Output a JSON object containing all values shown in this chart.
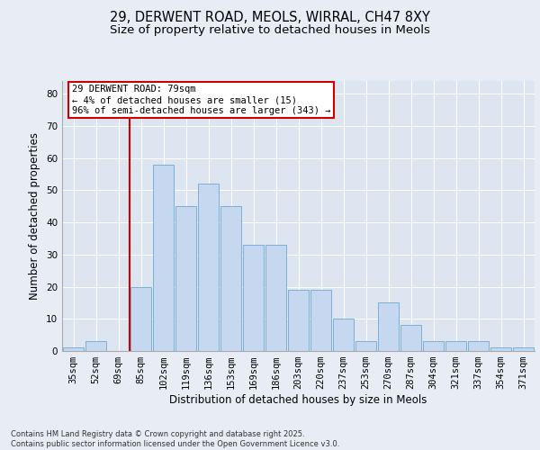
{
  "title1": "29, DERWENT ROAD, MEOLS, WIRRAL, CH47 8XY",
  "title2": "Size of property relative to detached houses in Meols",
  "xlabel": "Distribution of detached houses by size in Meols",
  "ylabel": "Number of detached properties",
  "categories": [
    "35sqm",
    "52sqm",
    "69sqm",
    "85sqm",
    "102sqm",
    "119sqm",
    "136sqm",
    "153sqm",
    "169sqm",
    "186sqm",
    "203sqm",
    "220sqm",
    "237sqm",
    "253sqm",
    "270sqm",
    "287sqm",
    "304sqm",
    "321sqm",
    "337sqm",
    "354sqm",
    "371sqm"
  ],
  "values": [
    1,
    3,
    0,
    20,
    58,
    45,
    52,
    45,
    33,
    33,
    19,
    19,
    10,
    3,
    15,
    8,
    3,
    3,
    3,
    1,
    1
  ],
  "bar_color": "#c5d8f0",
  "bar_edge_color": "#7bafd4",
  "red_line_index": 3,
  "annotation_text": "29 DERWENT ROAD: 79sqm\n← 4% of detached houses are smaller (15)\n96% of semi-detached houses are larger (343) →",
  "annotation_box_color": "#ffffff",
  "annotation_box_edge": "#cc0000",
  "red_line_color": "#cc0000",
  "ylim": [
    0,
    84
  ],
  "yticks": [
    0,
    10,
    20,
    30,
    40,
    50,
    60,
    70,
    80
  ],
  "background_color": "#e8edf5",
  "plot_background": "#dce5f0",
  "footer": "Contains HM Land Registry data © Crown copyright and database right 2025.\nContains public sector information licensed under the Open Government Licence v3.0.",
  "title_fontsize": 10.5,
  "subtitle_fontsize": 9.5,
  "axis_label_fontsize": 8.5,
  "tick_fontsize": 7.5,
  "footer_fontsize": 6.0
}
